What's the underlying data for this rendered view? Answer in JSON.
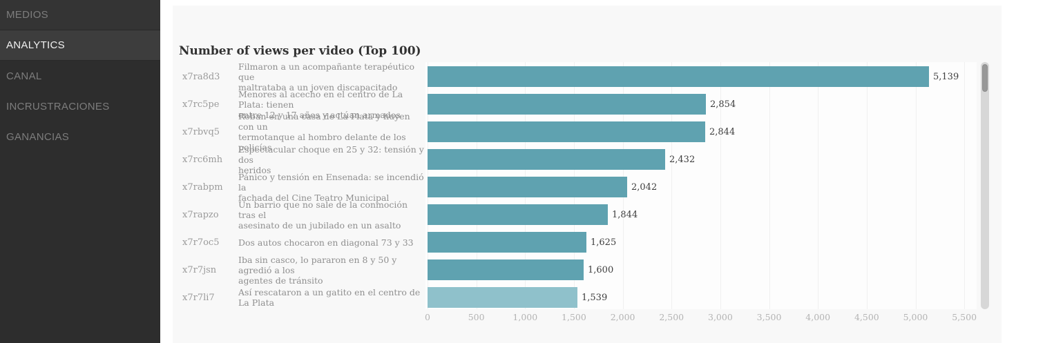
{
  "sidebar": {
    "items": [
      {
        "label": "MEDIOS",
        "active": false
      },
      {
        "label": "ANALYTICS",
        "active": true
      },
      {
        "label": "CANAL",
        "active": false
      },
      {
        "label": "INCRUSTRACIONES",
        "active": false
      },
      {
        "label": "GANANCIAS",
        "active": false
      }
    ]
  },
  "chart_data": {
    "type": "bar",
    "orientation": "horizontal",
    "title": "Number of views per video (Top 100)",
    "xlabel": "",
    "ylabel": "",
    "xlim": [
      0,
      5650
    ],
    "grid": true,
    "bar_color": "#5fa2b0",
    "highlight_bar_color": "#8fc1cb",
    "x_ticks": [
      "0",
      "500",
      "1,000",
      "1,500",
      "2,000",
      "2,500",
      "3,000",
      "3,500",
      "4,000",
      "4,500",
      "5,000",
      "5,500"
    ],
    "tick_interval": 500,
    "rows": [
      {
        "id": "x7ra8d3",
        "label": "Filmaron a un acompañante terapéutico que\nmaltrataba a un joven discapacitado",
        "value": 5139,
        "value_label": "5,139",
        "color": "#5fa2b0"
      },
      {
        "id": "x7rc5pe",
        "label": "Menores al acecho en el centro de La Plata: tienen\nentre 12 y 17 años y actúan armados",
        "value": 2854,
        "value_label": "2,854",
        "color": "#5fa2b0"
      },
      {
        "id": "x7rbvq5",
        "label": "Roban en una casa de La Plata y huyen con un\ntermotanque al hombro delante de los policías",
        "value": 2844,
        "value_label": "2,844",
        "color": "#5fa2b0"
      },
      {
        "id": "x7rc6mh",
        "label": "Espectacular choque en 25 y 32: tensión y dos\nheridos",
        "value": 2432,
        "value_label": "2,432",
        "color": "#5fa2b0"
      },
      {
        "id": "x7rabpm",
        "label": "Pánico y tensión en Ensenada: se incendió la\nfachada del Cine Teatro Municipal",
        "value": 2042,
        "value_label": "2,042",
        "color": "#5fa2b0"
      },
      {
        "id": "x7rapzo",
        "label": "Un barrio que no sale de la conmoción tras el\nasesinato de un jubilado en un asalto",
        "value": 1844,
        "value_label": "1,844",
        "color": "#5fa2b0"
      },
      {
        "id": "x7r7oc5",
        "label": "Dos autos chocaron en diagonal 73 y 33",
        "value": 1625,
        "value_label": "1,625",
        "color": "#5fa2b0"
      },
      {
        "id": "x7r7jsn",
        "label": "Iba sin casco, lo pararon en 8 y 50 y agredió a los\nagentes de tránsito",
        "value": 1600,
        "value_label": "1,600",
        "color": "#5fa2b0"
      },
      {
        "id": "x7r7li7",
        "label": "Así rescataron a un gatito en el centro de La Plata",
        "value": 1539,
        "value_label": "1,539",
        "color": "#8fc1cb"
      }
    ]
  }
}
